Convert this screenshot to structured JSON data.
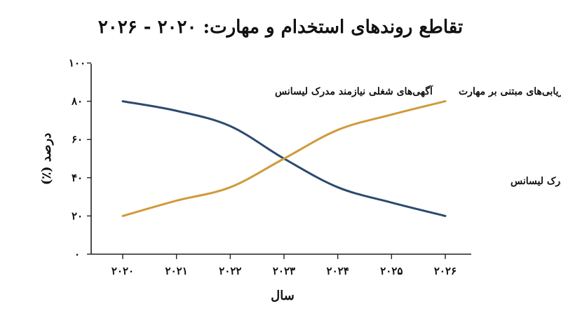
{
  "chart_data": {
    "type": "line",
    "title": "تقاطع روندهای استخدام و مهارت: ۲۰۲۰ - ۲۰۲۶",
    "xlabel": "سال",
    "ylabel": "درصد (٪)",
    "x": [
      2020,
      2021,
      2022,
      2023,
      2024,
      2025,
      2026
    ],
    "x_tick_labels": [
      "۲۰۲۰",
      "۲۰۲۱",
      "۲۰۲۲",
      "۲۰۲۳",
      "۲۰۲۴",
      "۲۰۲۵",
      "۲۰۲۶"
    ],
    "y_tick_values": [
      0,
      20,
      40,
      60,
      80,
      100
    ],
    "y_tick_labels": [
      "۰",
      "۲۰",
      "۴۰",
      "۶۰",
      "۸۰",
      "۱۰۰"
    ],
    "xlim": [
      2020,
      2026
    ],
    "ylim": [
      0,
      100
    ],
    "grid": false,
    "series": [
      {
        "name": "آگهی‌های شغلی نیازمند مدرک لیسانس",
        "color": "#2c4a6e",
        "values": [
          80,
          75,
          67,
          50,
          35,
          27,
          20
        ]
      },
      {
        "name": "استفاده از ارزیابی‌های مبتنی بر مهارت",
        "color": "#d19a3a",
        "values": [
          20,
          28,
          35,
          50,
          65,
          73,
          80
        ]
      }
    ],
    "annotations": [
      {
        "text": "آگهی‌های شغلی نیازمند مدرک لیسانس",
        "series": 0,
        "near_x": 2020
      },
      {
        "text": "استفاده از ارزیابی‌های مبتنی بر مهارت",
        "series": 1,
        "near_x": 2026
      },
      {
        "text": "آگهی‌های شغلی نیازمند مدرک لیسانس",
        "series": 0,
        "near_x": 2025
      }
    ]
  }
}
